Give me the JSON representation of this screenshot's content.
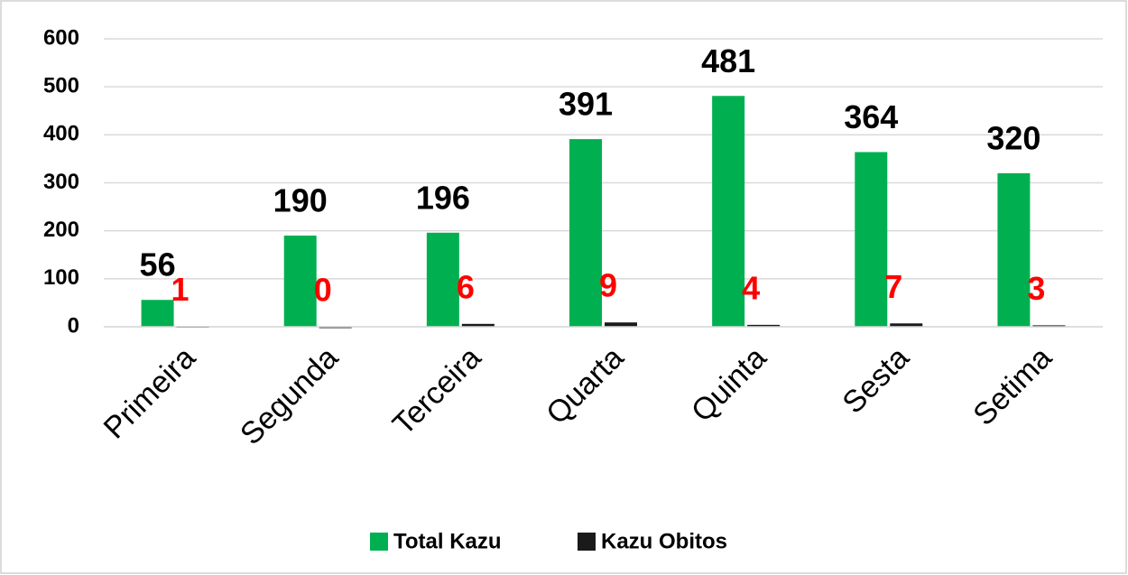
{
  "chart_data": {
    "type": "bar",
    "categories": [
      "Primeira",
      "Segunda",
      "Terceira",
      "Quarta",
      "Quinta",
      "Sesta",
      "Setima"
    ],
    "series": [
      {
        "name": "Total Kazu",
        "color": "#00b050",
        "values": [
          56,
          190,
          196,
          391,
          481,
          364,
          320
        ]
      },
      {
        "name": "Kazu Obitos",
        "color": "#1a1a1a",
        "values": [
          1,
          0,
          6,
          9,
          4,
          7,
          3
        ]
      }
    ],
    "value_label_colors": [
      "#000000",
      "#ff0000"
    ],
    "ylim": [
      0,
      600
    ],
    "yticks": [
      0,
      100,
      200,
      300,
      400,
      500,
      600
    ],
    "grid": true,
    "legend": "bottom"
  }
}
